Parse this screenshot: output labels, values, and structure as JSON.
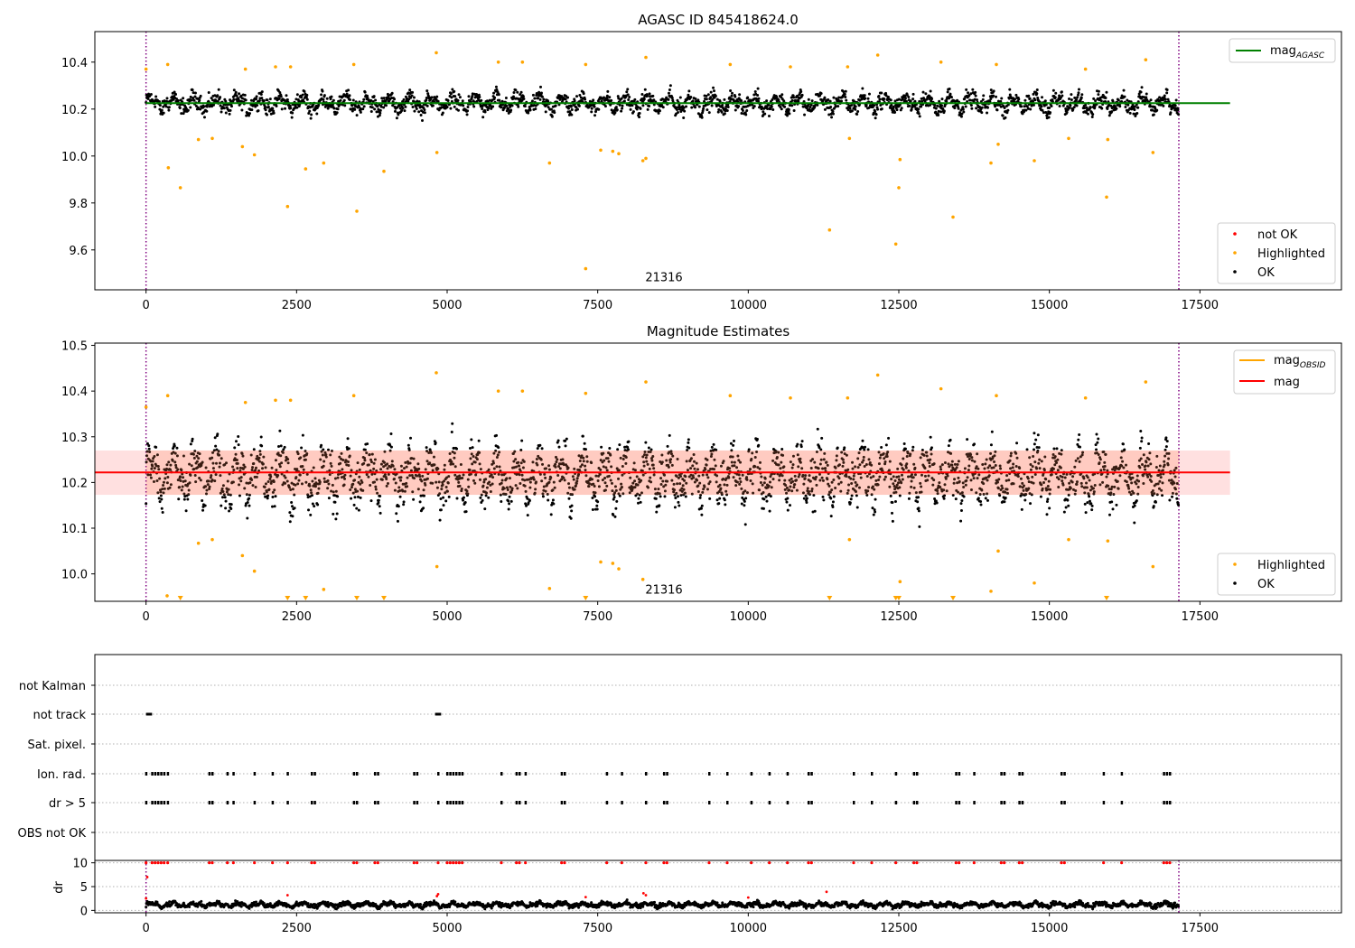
{
  "chart_data": [
    {
      "type": "scatter",
      "title": "AGASC ID 845418624.0",
      "xlim": [
        -850,
        19850
      ],
      "ylim": [
        9.43,
        10.53
      ],
      "xticks": [
        0,
        2500,
        5000,
        7500,
        10000,
        12500,
        15000,
        17500
      ],
      "xtick_labels": [
        "0",
        "2500",
        "5000",
        "7500",
        "10000",
        "12500",
        "15000",
        "17500"
      ],
      "yticks": [
        9.6,
        9.8,
        10.0,
        10.2,
        10.4
      ],
      "ytick_labels": [
        "9.6",
        "9.8",
        "10.0",
        "10.2",
        "10.4"
      ],
      "vlines": [
        0,
        17150
      ],
      "hline": {
        "name": "mag_AGASC",
        "value": 10.225,
        "x_range": [
          0,
          18000
        ],
        "color": "#008000"
      },
      "annotation": "21316",
      "annotation_x": 8300,
      "annotation_y": 9.485,
      "legend_top": {
        "label": "mag",
        "sub": "AGASC",
        "color": "#008000"
      },
      "legend_bottom": [
        {
          "label": "not OK",
          "color": "#ff0000"
        },
        {
          "label": "Highlighted",
          "color": "#ffa500"
        },
        {
          "label": "OK",
          "color": "#000000"
        }
      ],
      "series": [
        {
          "name": "OK",
          "color": "#000000",
          "band_center": 10.225,
          "band_halfwidth": 0.065,
          "n": 2400
        },
        {
          "name": "Highlighted",
          "color": "#ffa500",
          "x": [
            0,
            360,
            1650,
            2150,
            2400,
            3450,
            4820,
            5850,
            6250,
            7300,
            8300,
            9700,
            10700,
            11650,
            12150,
            13200,
            14120,
            15600,
            16600,
            370,
            570,
            870,
            1100,
            1600,
            1800,
            2350,
            2650,
            2950,
            3500,
            3950,
            4830,
            6700,
            7550,
            7750,
            7850,
            8250,
            8300,
            11350,
            11680,
            12500,
            12520,
            13400,
            14030,
            14150,
            14750,
            15320,
            15950,
            15970,
            16720,
            7300,
            12450
          ],
          "y": [
            10.37,
            10.39,
            10.37,
            10.38,
            10.38,
            10.39,
            10.44,
            10.4,
            10.4,
            10.39,
            10.42,
            10.39,
            10.38,
            10.38,
            10.43,
            10.4,
            10.39,
            10.37,
            10.41,
            9.95,
            9.865,
            10.07,
            10.075,
            10.04,
            10.005,
            9.785,
            9.945,
            9.97,
            9.765,
            9.935,
            10.015,
            9.97,
            10.025,
            10.02,
            10.01,
            9.98,
            9.99,
            9.685,
            10.075,
            9.865,
            9.985,
            9.74,
            9.97,
            10.05,
            9.98,
            10.075,
            9.825,
            10.07,
            10.015,
            9.52,
            9.625
          ]
        },
        {
          "name": "not OK",
          "color": "#ff0000",
          "x": [],
          "y": []
        }
      ]
    },
    {
      "type": "scatter",
      "title": "Magnitude Estimates",
      "xlim": [
        -850,
        19850
      ],
      "ylim": [
        9.94,
        10.505
      ],
      "xticks": [
        0,
        2500,
        5000,
        7500,
        10000,
        12500,
        15000,
        17500
      ],
      "xtick_labels": [
        "0",
        "2500",
        "5000",
        "7500",
        "10000",
        "12500",
        "15000",
        "17500"
      ],
      "yticks": [
        10.0,
        10.1,
        10.2,
        10.3,
        10.4,
        10.5
      ],
      "ytick_labels": [
        "10.0",
        "10.1",
        "10.2",
        "10.3",
        "10.4",
        "10.5"
      ],
      "vlines": [
        0,
        17150
      ],
      "hline": {
        "name": "mag",
        "value": 10.222,
        "x_range": [
          -850,
          18000
        ],
        "color": "#ff0000"
      },
      "band": {
        "low": 10.173,
        "high": 10.27,
        "x_range": [
          -850,
          18000
        ],
        "color": "#ff0000"
      },
      "annotation": "21316",
      "annotation_x": 8300,
      "annotation_y": 9.967,
      "legend_top": [
        {
          "label": "mag",
          "sub": "OBSID",
          "color": "#ffa500"
        },
        {
          "label": "mag",
          "sub": "",
          "color": "#ff0000"
        }
      ],
      "legend_bottom": [
        {
          "label": "Highlighted",
          "color": "#ffa500"
        },
        {
          "label": "OK",
          "color": "#000000"
        }
      ],
      "series": [
        {
          "name": "OK",
          "color": "#000000",
          "band_center": 10.215,
          "band_halfwidth": 0.1,
          "n": 2600
        },
        {
          "name": "Highlighted",
          "color": "#ffa500",
          "x": [
            0,
            360,
            1650,
            2150,
            2400,
            3450,
            4820,
            5850,
            6250,
            7300,
            8300,
            9700,
            10700,
            11650,
            12150,
            13200,
            14120,
            15600,
            16600,
            870,
            1100,
            1600,
            1800,
            2950,
            4830,
            6700,
            7550,
            7750,
            7850,
            8250,
            11680,
            12520,
            14030,
            14150,
            14750,
            15320,
            15970,
            16720,
            350
          ],
          "y": [
            10.365,
            10.39,
            10.375,
            10.38,
            10.38,
            10.39,
            10.44,
            10.4,
            10.4,
            10.395,
            10.42,
            10.39,
            10.385,
            10.385,
            10.435,
            10.405,
            10.39,
            10.385,
            10.42,
            10.067,
            10.075,
            10.04,
            10.006,
            9.966,
            10.016,
            9.968,
            10.026,
            10.023,
            10.011,
            9.988,
            10.075,
            9.983,
            9.962,
            10.05,
            9.98,
            10.075,
            10.072,
            10.016,
            9.952
          ]
        },
        {
          "name": "below-range markers",
          "color": "#ffa500",
          "x": [
            570,
            2350,
            2650,
            3500,
            3950,
            7300,
            11350,
            12450,
            12500,
            13400,
            15950
          ]
        }
      ]
    },
    {
      "type": "scatter",
      "title": "",
      "xlim": [
        -850,
        19850
      ],
      "row_labels": [
        "not Kalman",
        "not track",
        "Sat. pixel.",
        "Ion. rad.",
        "dr > 5",
        "OBS not OK"
      ],
      "flag_rows": {
        "not track": [
          [
            0,
            100
          ],
          [
            4800,
            4900
          ]
        ],
        "Ion. rad.": [
          0,
          100,
          150,
          200,
          250,
          300,
          360,
          1050,
          1100,
          1350,
          1450,
          1800,
          2100,
          2350,
          2750,
          2800,
          3450,
          3500,
          3800,
          3850,
          4450,
          4500,
          4850,
          5000,
          5050,
          5100,
          5150,
          5200,
          5250,
          5900,
          6150,
          6200,
          6300,
          6900,
          6950,
          7650,
          7900,
          8300,
          8600,
          8650,
          9350,
          9650,
          10050,
          10350,
          10650,
          11000,
          11050,
          11750,
          12050,
          12450,
          12750,
          12800,
          13450,
          13500,
          13750,
          14200,
          14250,
          14500,
          14550,
          15200,
          15250,
          15900,
          16200,
          16900,
          16950,
          17000
        ],
        "dr > 5": [
          0,
          100,
          150,
          200,
          250,
          300,
          360,
          1050,
          1100,
          1350,
          1450,
          1800,
          2100,
          2350,
          2750,
          2800,
          3450,
          3500,
          3800,
          3850,
          4450,
          4500,
          4850,
          5000,
          5050,
          5100,
          5150,
          5200,
          5250,
          5900,
          6150,
          6200,
          6300,
          6900,
          6950,
          7650,
          7900,
          8300,
          8600,
          8650,
          9350,
          9650,
          10050,
          10350,
          10650,
          11000,
          11050,
          11750,
          12050,
          12450,
          12750,
          12800,
          13450,
          13500,
          13750,
          14200,
          14250,
          14500,
          14550,
          15200,
          15250,
          15900,
          16200,
          16900,
          16950,
          17000
        ]
      }
    },
    {
      "type": "scatter",
      "ylabel": "dr",
      "xlim": [
        -850,
        19850
      ],
      "ylim": [
        -0.5,
        10.5
      ],
      "xticks": [
        0,
        2500,
        5000,
        7500,
        10000,
        12500,
        15000,
        17500
      ],
      "xtick_labels": [
        "0",
        "2500",
        "5000",
        "7500",
        "10000",
        "12500",
        "15000",
        "17500"
      ],
      "yticks": [
        0,
        5,
        10
      ],
      "ytick_labels": [
        "0",
        "5",
        "10"
      ],
      "vlines": [
        0,
        17150
      ],
      "series": [
        {
          "name": "OK",
          "color": "#000000",
          "band_center": 1.2,
          "band_halfwidth": 0.9,
          "n": 2600
        },
        {
          "name": "not OK (clipped at 10)",
          "color": "#ff0000",
          "y": 10,
          "x": [
            0,
            100,
            150,
            200,
            250,
            300,
            360,
            1050,
            1100,
            1350,
            1450,
            1800,
            2100,
            2350,
            2750,
            2800,
            3450,
            3500,
            3800,
            3850,
            4450,
            4500,
            4850,
            5000,
            5050,
            5100,
            5150,
            5200,
            5250,
            5900,
            6150,
            6200,
            6300,
            6900,
            6950,
            7650,
            7900,
            8300,
            8600,
            8650,
            9350,
            9650,
            10050,
            10350,
            10650,
            11000,
            11050,
            11750,
            12050,
            12450,
            12750,
            12800,
            13450,
            13500,
            13750,
            14200,
            14250,
            14500,
            14550,
            15200,
            15250,
            15900,
            16200,
            16900,
            16950,
            17000
          ]
        },
        {
          "name": "not OK",
          "color": "#ff0000",
          "x": [
            0,
            20,
            2350,
            4830,
            4850,
            7300,
            8260,
            8300,
            10000,
            11300
          ],
          "y": [
            2.5,
            7.0,
            3.2,
            3.0,
            3.4,
            2.8,
            3.6,
            3.2,
            2.7,
            3.9
          ]
        }
      ]
    }
  ]
}
